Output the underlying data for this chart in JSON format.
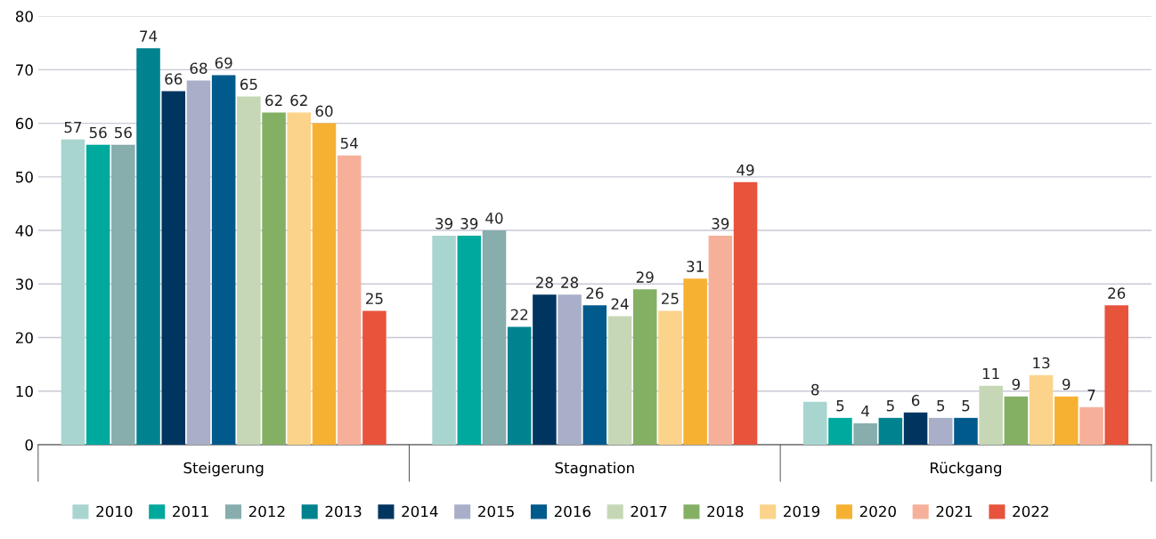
{
  "chart_data": {
    "type": "bar",
    "categories": [
      "Steigerung",
      "Stagnation",
      "Rückgang"
    ],
    "series": [
      {
        "name": "2010",
        "color": "#a8d5cf",
        "values": [
          57,
          39,
          8
        ]
      },
      {
        "name": "2011",
        "color": "#00a99d",
        "values": [
          56,
          39,
          5
        ]
      },
      {
        "name": "2012",
        "color": "#87adad",
        "values": [
          56,
          40,
          4
        ]
      },
      {
        "name": "2013",
        "color": "#00828f",
        "values": [
          74,
          22,
          5
        ]
      },
      {
        "name": "2014",
        "color": "#003560",
        "values": [
          66,
          28,
          6
        ]
      },
      {
        "name": "2015",
        "color": "#a9afc9",
        "values": [
          68,
          28,
          5
        ]
      },
      {
        "name": "2016",
        "color": "#005a8b",
        "values": [
          69,
          26,
          5
        ]
      },
      {
        "name": "2017",
        "color": "#c6d7b6",
        "values": [
          65,
          24,
          11
        ]
      },
      {
        "name": "2018",
        "color": "#84b064",
        "values": [
          62,
          29,
          9
        ]
      },
      {
        "name": "2019",
        "color": "#fbd38a",
        "values": [
          62,
          25,
          13
        ]
      },
      {
        "name": "2020",
        "color": "#f7b132",
        "values": [
          60,
          31,
          9
        ]
      },
      {
        "name": "2021",
        "color": "#f6b09a",
        "values": [
          54,
          39,
          7
        ]
      },
      {
        "name": "2022",
        "color": "#e8533b",
        "values": [
          25,
          49,
          26
        ]
      }
    ],
    "ylim": [
      0,
      80
    ],
    "yticks": [
      0,
      10,
      20,
      30,
      40,
      50,
      60,
      70,
      80
    ],
    "grid": "y",
    "legend": "bottom",
    "data_labels": true
  }
}
